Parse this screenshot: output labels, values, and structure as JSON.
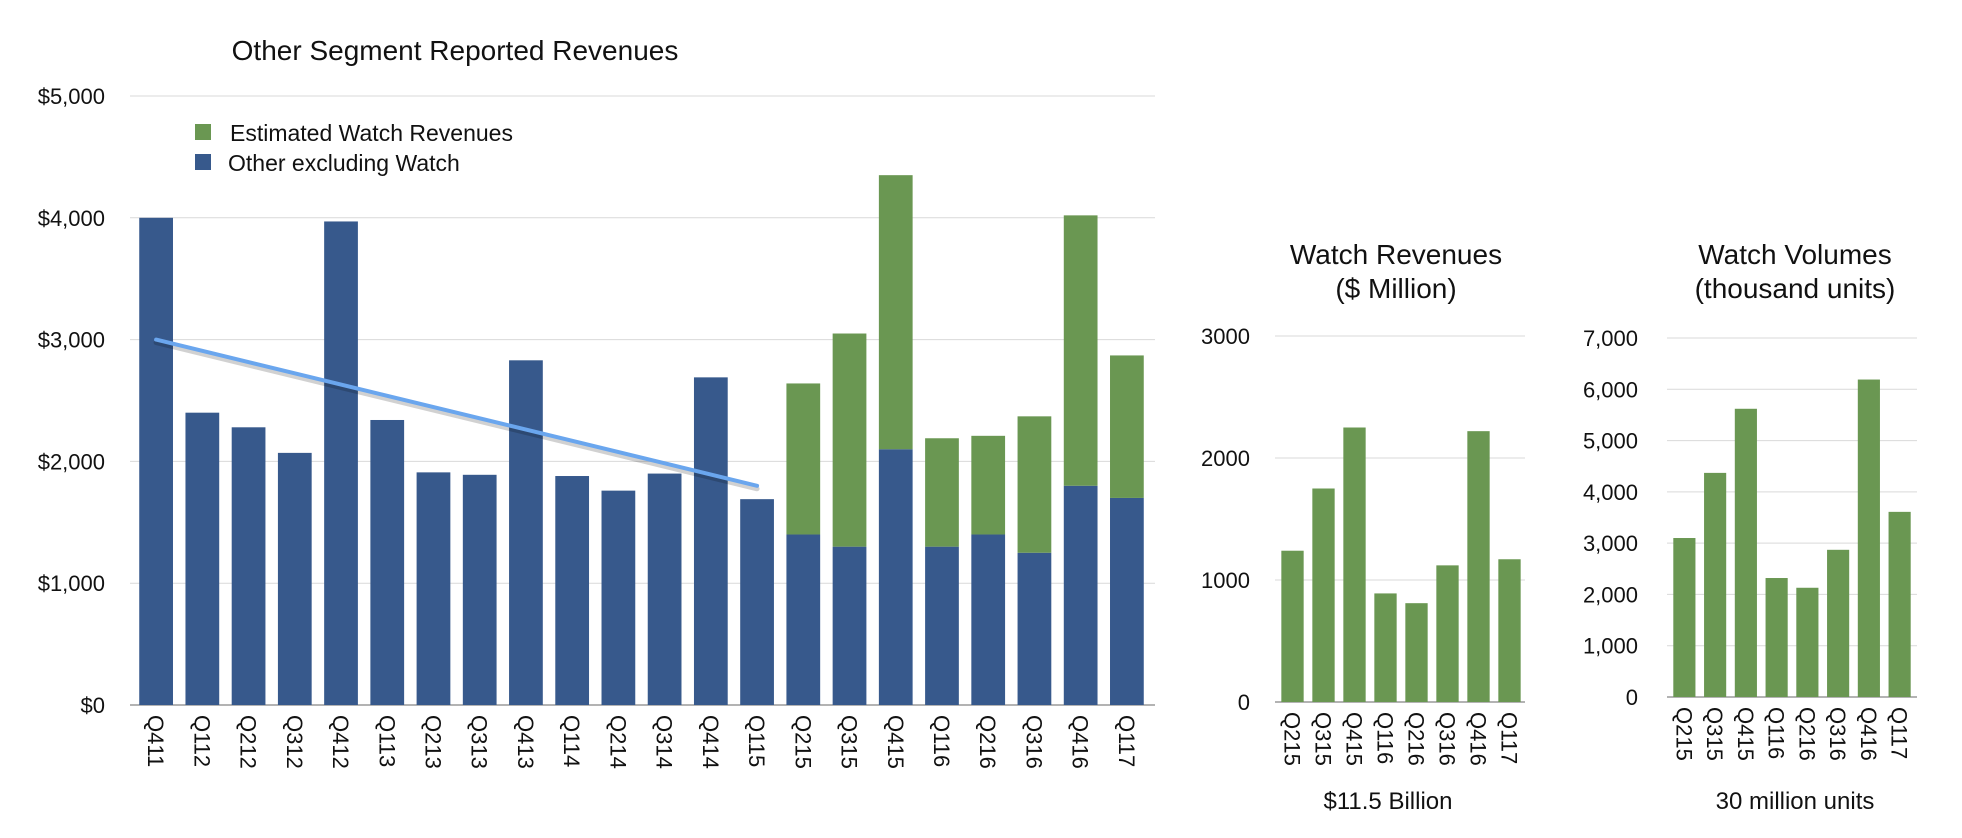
{
  "colors": {
    "watch": "#6a9752",
    "other": "#37598c",
    "trend": "#6aa6ee"
  },
  "chart_data": [
    {
      "type": "bar",
      "stacked": true,
      "title": "Other Segment Reported Revenues",
      "categories": [
        "Q411",
        "Q112",
        "Q212",
        "Q312",
        "Q412",
        "Q113",
        "Q213",
        "Q313",
        "Q413",
        "Q114",
        "Q214",
        "Q314",
        "Q414",
        "Q115",
        "Q215",
        "Q315",
        "Q415",
        "Q116",
        "Q216",
        "Q316",
        "Q416",
        "Q117"
      ],
      "series": [
        {
          "name": "Other excluding Watch",
          "values": [
            4000,
            2400,
            2280,
            2070,
            3970,
            2340,
            1910,
            1890,
            2830,
            1880,
            1760,
            1900,
            2690,
            1690,
            1400,
            1300,
            2100,
            1300,
            1400,
            1250,
            1800,
            1700
          ]
        },
        {
          "name": "Estimated Watch Revenues",
          "values": [
            0,
            0,
            0,
            0,
            0,
            0,
            0,
            0,
            0,
            0,
            0,
            0,
            0,
            0,
            1240,
            1750,
            2250,
            890,
            810,
            1120,
            2220,
            1170
          ]
        }
      ],
      "trend_line": {
        "from": {
          "x": "Q411",
          "y": 3000
        },
        "to": {
          "x": "Q115",
          "y": 1800
        }
      },
      "ylim": [
        0,
        5000
      ],
      "yticks": [
        "$0",
        "$1,000",
        "$2,000",
        "$3,000",
        "$4,000",
        "$5,000"
      ],
      "legend_position": "top-left",
      "grid": true
    },
    {
      "type": "bar",
      "title": [
        "Watch Revenues",
        "($ Million)"
      ],
      "categories": [
        "Q215",
        "Q315",
        "Q415",
        "Q116",
        "Q216",
        "Q316",
        "Q416",
        "Q117"
      ],
      "values": [
        1240,
        1750,
        2250,
        890,
        810,
        1120,
        2220,
        1170
      ],
      "ylim": [
        0,
        3000
      ],
      "yticks": [
        "0",
        "1000",
        "2000",
        "3000"
      ],
      "annotation": "$11.5 Billion",
      "grid": true
    },
    {
      "type": "bar",
      "title": [
        "Watch Volumes",
        "(thousand units)"
      ],
      "categories": [
        "Q215",
        "Q315",
        "Q415",
        "Q116",
        "Q216",
        "Q316",
        "Q416",
        "Q117"
      ],
      "values": [
        3100,
        4370,
        5620,
        2320,
        2130,
        2870,
        6190,
        3610
      ],
      "ylim": [
        0,
        7000
      ],
      "yticks": [
        "0",
        "1,000",
        "2,000",
        "3,000",
        "4,000",
        "5,000",
        "6,000",
        "7,000"
      ],
      "annotation": "30 million units",
      "grid": true
    }
  ]
}
